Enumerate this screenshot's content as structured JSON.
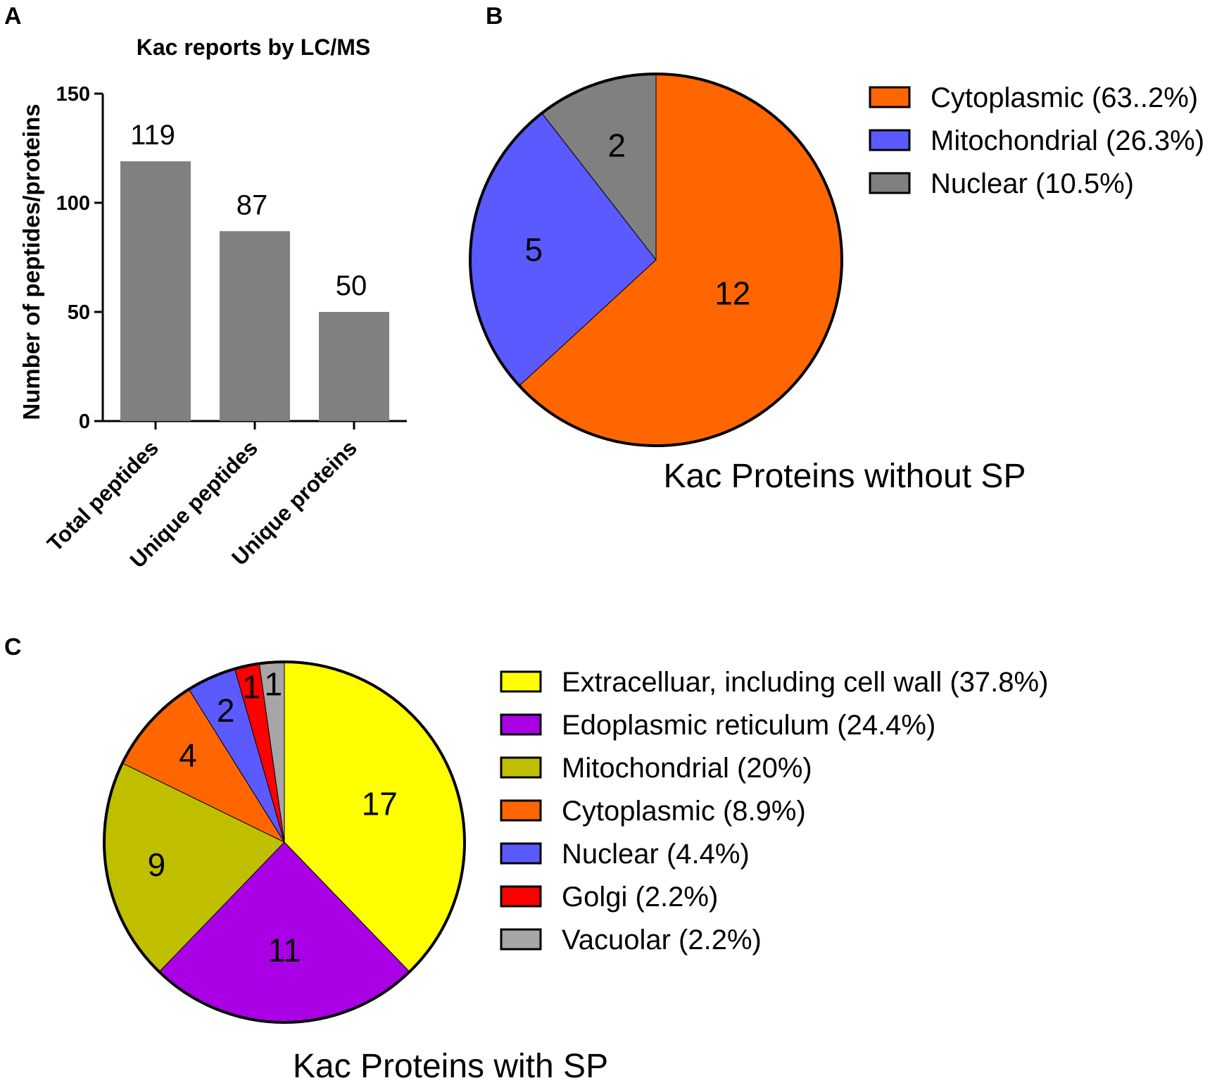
{
  "panels": {
    "a": "A",
    "b": "B",
    "c": "C"
  },
  "chart_data": [
    {
      "type": "bar",
      "title": "Kac reports by LC/MS",
      "ylabel": "Number of peptides/proteins",
      "xlabel": "",
      "categories": [
        "Total peptides",
        "Unique peptides",
        "Unique proteins"
      ],
      "values": [
        119,
        87,
        50
      ],
      "data_labels": [
        "119",
        "87",
        "50"
      ],
      "ylim": [
        0,
        150
      ],
      "yticks": [
        "0",
        "50",
        "100",
        "150"
      ],
      "colors": {
        "bar": "#808080",
        "axis": "#000000"
      },
      "grid": false
    },
    {
      "type": "pie",
      "title": "Kac Proteins without SP",
      "legend_position": "right",
      "slices": [
        {
          "name": "Cytoplasmic",
          "value": 12,
          "label": "12",
          "legend": "Cytoplasmic (63..2%)",
          "color": "#FF6600"
        },
        {
          "name": "Mitochondrial",
          "value": 5,
          "label": "5",
          "legend": "Mitochondrial (26.3%)",
          "color": "#5A5AFF"
        },
        {
          "name": "Nuclear",
          "value": 2,
          "label": "2",
          "legend": "Nuclear (10.5%)",
          "color": "#808080"
        }
      ]
    },
    {
      "type": "pie",
      "title": "Kac Proteins with SP",
      "legend_position": "right",
      "slices": [
        {
          "name": "Extracelluar, including cell wall",
          "value": 17,
          "label": "17",
          "legend": "Extracelluar, including cell wall (37.8%)",
          "color": "#FFFF00"
        },
        {
          "name": "Edoplasmic reticulum",
          "value": 11,
          "label": "11",
          "legend": "Edoplasmic reticulum (24.4%)",
          "color": "#AA00E6"
        },
        {
          "name": "Mitochondrial",
          "value": 9,
          "label": "9",
          "legend": "Mitochondrial (20%)",
          "color": "#BFBF00"
        },
        {
          "name": "Cytoplasmic",
          "value": 4,
          "label": "4",
          "legend": "Cytoplasmic (8.9%)",
          "color": "#FF6600"
        },
        {
          "name": "Nuclear",
          "value": 2,
          "label": "2",
          "legend": "Nuclear (4.4%)",
          "color": "#5A5AFF"
        },
        {
          "name": "Golgi",
          "value": 1,
          "label": "1",
          "legend": "Golgi (2.2%)",
          "color": "#FF0000"
        },
        {
          "name": "Vacuolar",
          "value": 1,
          "label": "1",
          "legend": "Vacuolar (2.2%)",
          "color": "#A6A6A6"
        }
      ]
    }
  ]
}
